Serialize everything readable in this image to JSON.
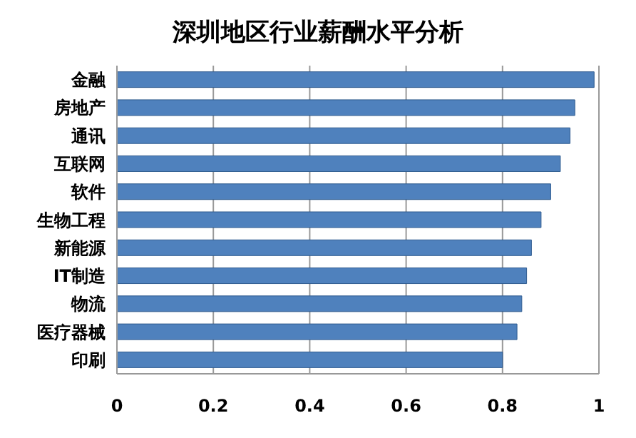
{
  "chart_data": {
    "type": "bar",
    "orientation": "horizontal",
    "title": "深圳地区行业薪酬水平分析",
    "categories": [
      "金融",
      "房地产",
      "通讯",
      "互联网",
      "软件",
      "生物工程",
      "新能源",
      "IT制造",
      "物流",
      "医疗器械",
      "印刷"
    ],
    "values": [
      0.99,
      0.95,
      0.94,
      0.92,
      0.9,
      0.88,
      0.86,
      0.85,
      0.84,
      0.83,
      0.8
    ],
    "color": "#4f81bd",
    "xlim": [
      0,
      1
    ],
    "xticks": [
      0,
      0.2,
      0.4,
      0.6,
      0.8,
      1
    ],
    "grid": "x"
  }
}
